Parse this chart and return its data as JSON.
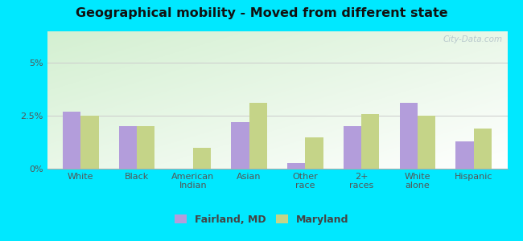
{
  "title": "Geographical mobility - Moved from different state",
  "categories": [
    "White",
    "Black",
    "American\nIndian",
    "Asian",
    "Other\nrace",
    "2+\nraces",
    "White\nalone",
    "Hispanic"
  ],
  "fairland_values": [
    2.7,
    2.0,
    0.0,
    2.2,
    0.25,
    2.0,
    3.1,
    1.3
  ],
  "maryland_values": [
    2.5,
    2.0,
    1.0,
    3.1,
    1.5,
    2.6,
    2.5,
    1.9
  ],
  "fairland_color": "#b39ddb",
  "maryland_color": "#c5d488",
  "ylim": [
    0,
    6.5
  ],
  "yticks": [
    0,
    2.5,
    5.0
  ],
  "ytick_labels": [
    "0%",
    "2.5%",
    "5%"
  ],
  "bg_outer": "#00e8ff",
  "legend_fairland": "Fairland, MD",
  "legend_maryland": "Maryland",
  "watermark": "City-Data.com"
}
